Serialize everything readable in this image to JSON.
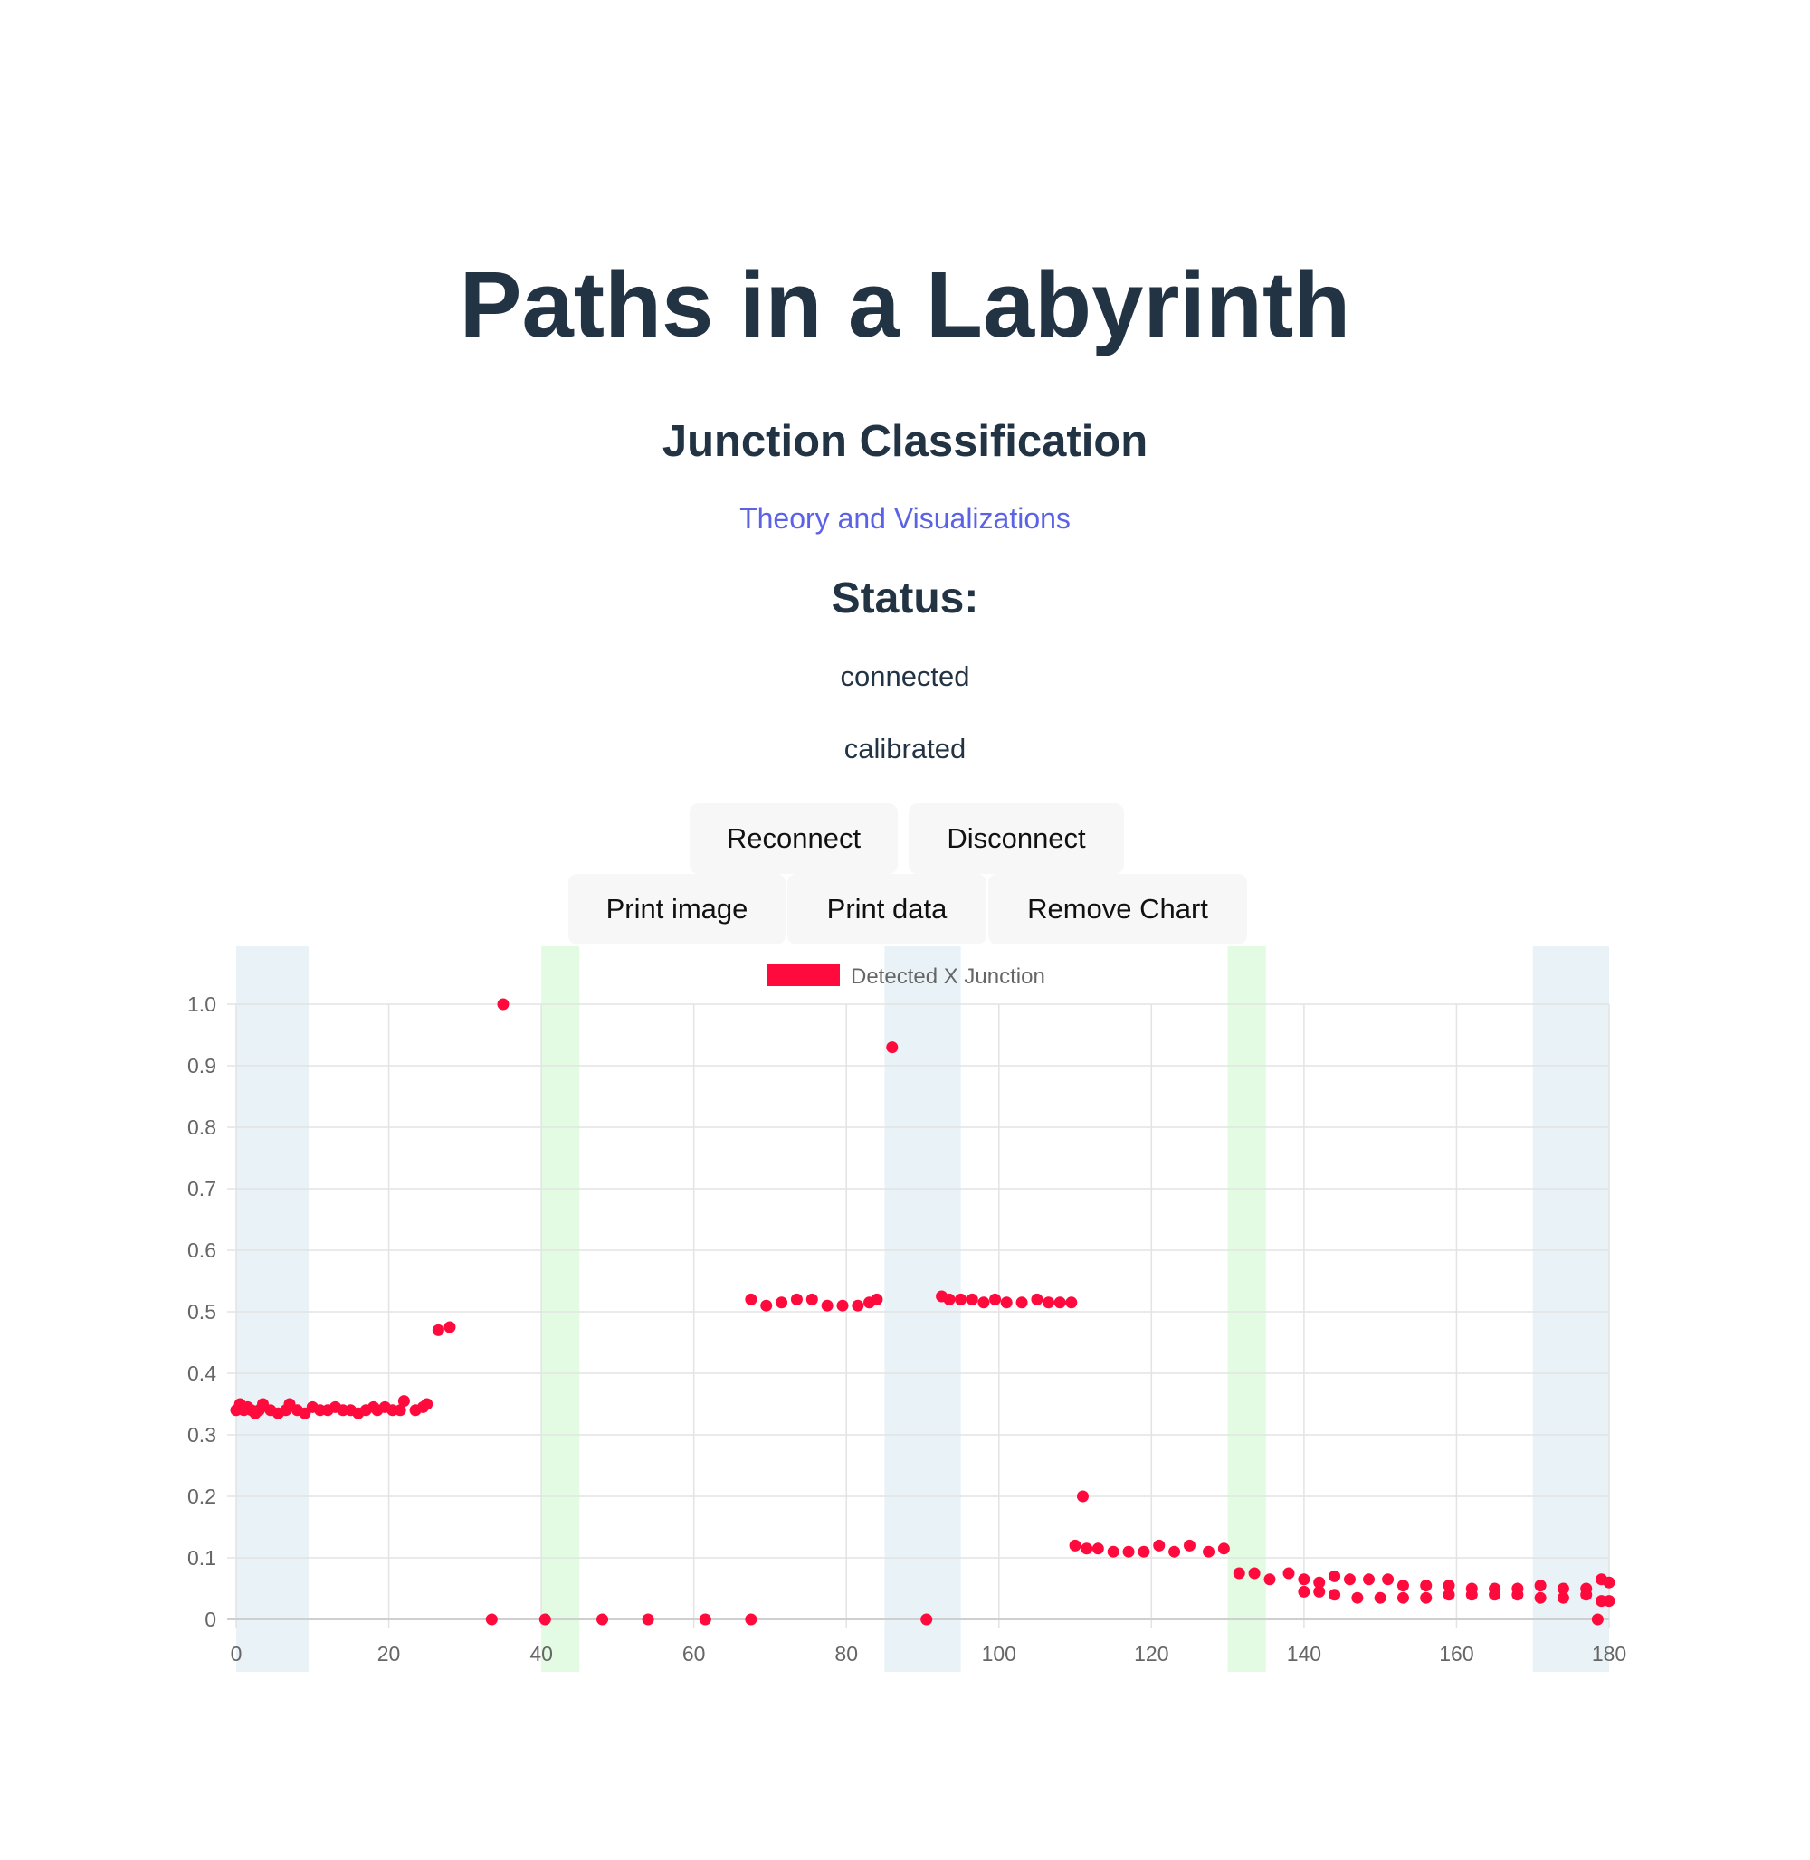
{
  "header": {
    "title": "Paths in a Labyrinth",
    "subtitle": "Junction Classification",
    "link_label": "Theory and Visualizations"
  },
  "status": {
    "heading": "Status:",
    "connection": "connected",
    "calibration": "calibrated"
  },
  "buttons": {
    "reconnect": "Reconnect",
    "disconnect": "Disconnect",
    "print_image": "Print image",
    "print_data": "Print data",
    "remove_chart": "Remove Chart"
  },
  "colors": {
    "text": "#223344",
    "link": "#5b62e6",
    "point": "#ff0a3d",
    "band_blue": "#e8f2f7",
    "band_green": "#e3fae3",
    "grid": "#e3e3e3"
  },
  "chart_data": {
    "type": "scatter",
    "title": "",
    "xlabel": "",
    "ylabel": "",
    "xlim": [
      0,
      180
    ],
    "ylim": [
      0,
      1
    ],
    "x_ticks": [
      0,
      20,
      40,
      60,
      80,
      100,
      120,
      140,
      160,
      180
    ],
    "y_ticks": [
      0,
      0.1,
      0.2,
      0.3,
      0.4,
      0.5,
      0.6,
      0.7,
      0.8,
      0.9,
      1.0
    ],
    "x_tick_labels": [
      "0",
      "20",
      "40",
      "60",
      "80",
      "100",
      "120",
      "140",
      "160",
      "180"
    ],
    "y_tick_labels": [
      "0",
      "0.1",
      "0.2",
      "0.3",
      "0.4",
      "0.5",
      "0.6",
      "0.7",
      "0.8",
      "0.9",
      "1.0"
    ],
    "grid": true,
    "legend_position": "top-center",
    "bands": [
      {
        "x_start": 0,
        "x_end": 9.5,
        "color": "blue"
      },
      {
        "x_start": 40,
        "x_end": 45,
        "color": "green"
      },
      {
        "x_start": 85,
        "x_end": 95,
        "color": "blue"
      },
      {
        "x_start": 130,
        "x_end": 135,
        "color": "green"
      },
      {
        "x_start": 170,
        "x_end": 180,
        "color": "blue"
      }
    ],
    "series": [
      {
        "name": "Detected X Junction",
        "points": [
          [
            0,
            0.34
          ],
          [
            0.5,
            0.35
          ],
          [
            1,
            0.34
          ],
          [
            1.5,
            0.345
          ],
          [
            2,
            0.34
          ],
          [
            2.5,
            0.335
          ],
          [
            3,
            0.34
          ],
          [
            3.5,
            0.35
          ],
          [
            4.5,
            0.34
          ],
          [
            5.5,
            0.335
          ],
          [
            6.5,
            0.34
          ],
          [
            7,
            0.35
          ],
          [
            8,
            0.34
          ],
          [
            9,
            0.335
          ],
          [
            10,
            0.345
          ],
          [
            11,
            0.34
          ],
          [
            12,
            0.34
          ],
          [
            13,
            0.345
          ],
          [
            14,
            0.34
          ],
          [
            15,
            0.34
          ],
          [
            16,
            0.335
          ],
          [
            17,
            0.34
          ],
          [
            18,
            0.345
          ],
          [
            18.5,
            0.34
          ],
          [
            19.5,
            0.345
          ],
          [
            20.5,
            0.34
          ],
          [
            21.5,
            0.34
          ],
          [
            22,
            0.355
          ],
          [
            23.5,
            0.34
          ],
          [
            24.5,
            0.345
          ],
          [
            25,
            0.35
          ],
          [
            26.5,
            0.47
          ],
          [
            28,
            0.475
          ],
          [
            33.5,
            0.0
          ],
          [
            35,
            1.0
          ],
          [
            40.5,
            0.0
          ],
          [
            48,
            0.0
          ],
          [
            54,
            0.0
          ],
          [
            61.5,
            0.0
          ],
          [
            67.5,
            0.0
          ],
          [
            67.5,
            0.52
          ],
          [
            69.5,
            0.51
          ],
          [
            71.5,
            0.515
          ],
          [
            73.5,
            0.52
          ],
          [
            75.5,
            0.52
          ],
          [
            77.5,
            0.51
          ],
          [
            79.5,
            0.51
          ],
          [
            81.5,
            0.51
          ],
          [
            83,
            0.515
          ],
          [
            84,
            0.52
          ],
          [
            86,
            0.93
          ],
          [
            90.5,
            0.0
          ],
          [
            92.5,
            0.525
          ],
          [
            93.5,
            0.52
          ],
          [
            95,
            0.52
          ],
          [
            96.5,
            0.52
          ],
          [
            98,
            0.515
          ],
          [
            99.5,
            0.52
          ],
          [
            101,
            0.515
          ],
          [
            103,
            0.515
          ],
          [
            105,
            0.52
          ],
          [
            106.5,
            0.515
          ],
          [
            108,
            0.515
          ],
          [
            109.5,
            0.515
          ],
          [
            110,
            0.12
          ],
          [
            111,
            0.2
          ],
          [
            111.5,
            0.115
          ],
          [
            113,
            0.115
          ],
          [
            115,
            0.11
          ],
          [
            117,
            0.11
          ],
          [
            119,
            0.11
          ],
          [
            121,
            0.12
          ],
          [
            123,
            0.11
          ],
          [
            125,
            0.12
          ],
          [
            127.5,
            0.11
          ],
          [
            129.5,
            0.115
          ],
          [
            131.5,
            0.075
          ],
          [
            133.5,
            0.075
          ],
          [
            135.5,
            0.065
          ],
          [
            138,
            0.075
          ],
          [
            140,
            0.065
          ],
          [
            142,
            0.06
          ],
          [
            144,
            0.07
          ],
          [
            146,
            0.065
          ],
          [
            148.5,
            0.065
          ],
          [
            151,
            0.065
          ],
          [
            153,
            0.055
          ],
          [
            156,
            0.055
          ],
          [
            159,
            0.055
          ],
          [
            162,
            0.05
          ],
          [
            165,
            0.05
          ],
          [
            168,
            0.05
          ],
          [
            171,
            0.055
          ],
          [
            174,
            0.05
          ],
          [
            177,
            0.05
          ],
          [
            179,
            0.065
          ],
          [
            180,
            0.06
          ],
          [
            179,
            0.03
          ],
          [
            180,
            0.03
          ],
          [
            178.5,
            0.0
          ],
          [
            140,
            0.045
          ],
          [
            142,
            0.045
          ],
          [
            144,
            0.04
          ],
          [
            147,
            0.035
          ],
          [
            150,
            0.035
          ],
          [
            153,
            0.035
          ],
          [
            156,
            0.035
          ],
          [
            159,
            0.04
          ],
          [
            162,
            0.04
          ],
          [
            165,
            0.04
          ],
          [
            168,
            0.04
          ],
          [
            171,
            0.035
          ],
          [
            174,
            0.035
          ],
          [
            177,
            0.04
          ]
        ]
      }
    ]
  }
}
